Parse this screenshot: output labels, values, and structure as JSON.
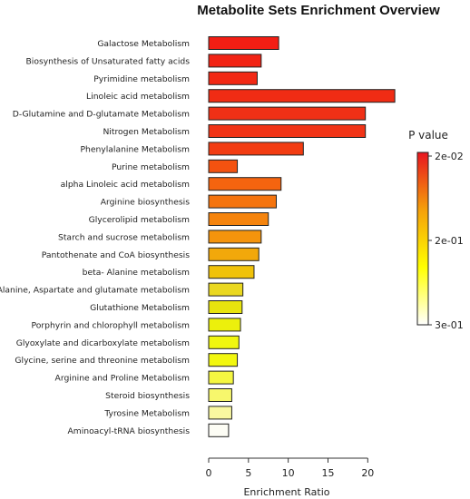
{
  "chart_data": {
    "type": "bar",
    "orientation": "horizontal",
    "title": "Metabolite Sets Enrichment Overview",
    "xlabel": "Enrichment Ratio",
    "ylabel": "",
    "xlim": [
      0,
      23.5
    ],
    "xticks": [
      0,
      5,
      10,
      15,
      20
    ],
    "grid": false,
    "categories": [
      "Galactose Metabolism",
      "Biosynthesis of Unsaturated fatty acids",
      "Pyrimidine metabolism",
      "Linoleic acid metabolism",
      "D-Glutamine and D-glutamate Metabolism",
      "Nitrogen Metabolism",
      "Phenylalanine Metabolism",
      "Purine metabolism",
      "alpha Linoleic acid metabolism",
      "Arginine biosynthesis",
      "Glycerolipid metabolism",
      "Starch and sucrose metabolism",
      "Pantothenate and CoA biosynthesis",
      "beta- Alanine metabolism",
      "Alanine, Aspartate and glutamate metabolism",
      "Glutathione Metabolism",
      "Porphyrin and chlorophyll metabolism",
      "Glyoxylate and dicarboxylate metabolism",
      "Glycine, serine and threonine metabolism",
      "Arginine and Proline Metabolism",
      "Steroid biosynthesis",
      "Tyrosine Metabolism",
      "Aminoacyl-tRNA biosynthesis"
    ],
    "values": [
      8.8,
      6.6,
      6.1,
      23.4,
      19.7,
      19.7,
      11.9,
      3.6,
      9.1,
      8.5,
      7.5,
      6.6,
      6.3,
      5.7,
      4.3,
      4.2,
      4.0,
      3.8,
      3.6,
      3.1,
      2.9,
      2.9,
      2.5
    ],
    "colors": [
      "#f21e14",
      "#f22314",
      "#f22814",
      "#f02c14",
      "#f03016",
      "#f03417",
      "#f23c12",
      "#f45210",
      "#f5640f",
      "#f5740e",
      "#f5840d",
      "#f5940c",
      "#f2a80b",
      "#f0c20a",
      "#ead820",
      "#e8e40e",
      "#ecf00c",
      "#f0f60e",
      "#f2f70f",
      "#f5f741",
      "#f7f76c",
      "#f9f8a0",
      "#fdfdf5"
    ],
    "legend": {
      "title": "P value",
      "placement": "right",
      "labels": [
        "2e-02",
        "2e-01",
        "3e-01"
      ],
      "gradient": [
        "#e8151f",
        "#f5a00a",
        "#ffff00",
        "#ffffff"
      ]
    }
  }
}
